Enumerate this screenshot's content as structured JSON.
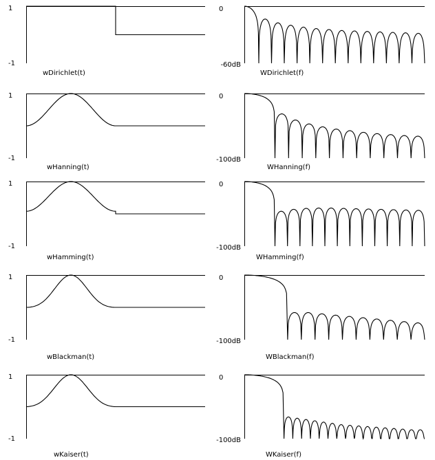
{
  "chart_data": [
    {
      "type": "line",
      "domain": "time",
      "window": "dirichlet",
      "caption": "wDirichlet(t)",
      "ymax_label": "1",
      "ymin_label": "-1",
      "ylim": [
        -1,
        1
      ],
      "xlim": [
        0,
        1
      ],
      "x": [
        0,
        0.5,
        0.5,
        1
      ],
      "y": [
        1,
        1,
        0,
        0
      ]
    },
    {
      "type": "line",
      "domain": "frequency",
      "window": "dirichlet",
      "caption": "WDirichlet(f)",
      "ymax_label": "0",
      "ymin_label": "-60dB",
      "ylim": [
        -60,
        0
      ],
      "xlim": [
        0,
        1
      ],
      "main_lobe_end": 0.08,
      "sidelobe_count": 13,
      "sidelobe_peaks_db": [
        -13.5,
        -17.5,
        -20,
        -22,
        -23.5,
        -24.5,
        -25.5,
        -26,
        -26.5,
        -27,
        -27.5,
        -28,
        -28.5
      ]
    },
    {
      "type": "line",
      "domain": "time",
      "window": "hanning",
      "caption": "wHanning(t)",
      "ymax_label": "1",
      "ymin_label": "-1",
      "ylim": [
        -1,
        1
      ],
      "xlim": [
        0,
        1
      ],
      "x": [
        0,
        0.1,
        0.2,
        0.3,
        0.4,
        0.5,
        1
      ],
      "y": [
        0,
        0.345,
        0.905,
        0.905,
        0.345,
        0,
        0
      ]
    },
    {
      "type": "line",
      "domain": "frequency",
      "window": "hanning",
      "caption": "WHanning(f)",
      "ymax_label": "0",
      "ymin_label": "-100dB",
      "ylim": [
        -100,
        0
      ],
      "xlim": [
        0,
        1
      ],
      "main_lobe_end": 0.17,
      "sidelobe_count": 11,
      "sidelobe_peaks_db": [
        -31.5,
        -41,
        -47,
        -51.5,
        -55,
        -57.5,
        -60,
        -62,
        -63.5,
        -65,
        -66
      ]
    },
    {
      "type": "line",
      "domain": "time",
      "window": "hamming",
      "caption": "wHamming(t)",
      "ymax_label": "1",
      "ymin_label": "-1",
      "ylim": [
        -1,
        1
      ],
      "xlim": [
        0,
        1
      ],
      "x": [
        0,
        0.1,
        0.2,
        0.3,
        0.4,
        0.5,
        0.5,
        1
      ],
      "y": [
        0.08,
        0.397,
        0.912,
        0.912,
        0.397,
        0.08,
        0,
        0
      ]
    },
    {
      "type": "line",
      "domain": "frequency",
      "window": "hamming",
      "caption": "WHamming(f)",
      "ymax_label": "0",
      "ymin_label": "-100dB",
      "ylim": [
        -100,
        0
      ],
      "xlim": [
        0,
        1
      ],
      "main_lobe_end": 0.17,
      "sidelobe_count": 12,
      "sidelobe_peaks_db": [
        -46,
        -43,
        -41.5,
        -41,
        -41,
        -41.5,
        -42,
        -42.5,
        -43,
        -43.5,
        -44,
        -44.5
      ]
    },
    {
      "type": "line",
      "domain": "time",
      "window": "blackman",
      "caption": "wBlackman(t)",
      "ymax_label": "1",
      "ymin_label": "-1",
      "ylim": [
        -1,
        1
      ],
      "xlim": [
        0,
        1
      ],
      "x": [
        0,
        0.1,
        0.2,
        0.3,
        0.4,
        0.5,
        1
      ],
      "y": [
        0,
        0.2,
        0.849,
        0.849,
        0.2,
        0,
        0
      ]
    },
    {
      "type": "line",
      "domain": "frequency",
      "window": "blackman",
      "caption": "WBlackman(f)",
      "ymax_label": "0",
      "ymin_label": "-100dB",
      "ylim": [
        -100,
        0
      ],
      "xlim": [
        0,
        1
      ],
      "main_lobe_end": 0.24,
      "sidelobe_count": 10,
      "sidelobe_peaks_db": [
        -58,
        -58,
        -60,
        -62,
        -64,
        -66,
        -68,
        -70,
        -72,
        -74
      ]
    },
    {
      "type": "line",
      "domain": "time",
      "window": "kaiser",
      "caption": "wKaiser(t)",
      "ymax_label": "1",
      "ymin_label": "-1",
      "ylim": [
        -1,
        1
      ],
      "xlim": [
        0,
        1
      ],
      "x": [
        0,
        0.1,
        0.2,
        0.3,
        0.4,
        0.5,
        1
      ],
      "y": [
        0,
        0.26,
        0.88,
        0.88,
        0.26,
        0,
        0
      ]
    },
    {
      "type": "line",
      "domain": "frequency",
      "window": "kaiser",
      "caption": "WKaiser(f)",
      "ymax_label": "0",
      "ymin_label": "-100dB",
      "ylim": [
        -100,
        0
      ],
      "xlim": [
        0,
        1
      ],
      "main_lobe_end": 0.22,
      "sidelobe_count": 16,
      "sidelobe_peaks_db": [
        -66,
        -68,
        -70,
        -72,
        -74,
        -76,
        -78,
        -79,
        -80,
        -81,
        -82,
        -83,
        -84,
        -85,
        -86,
        -86
      ]
    }
  ]
}
